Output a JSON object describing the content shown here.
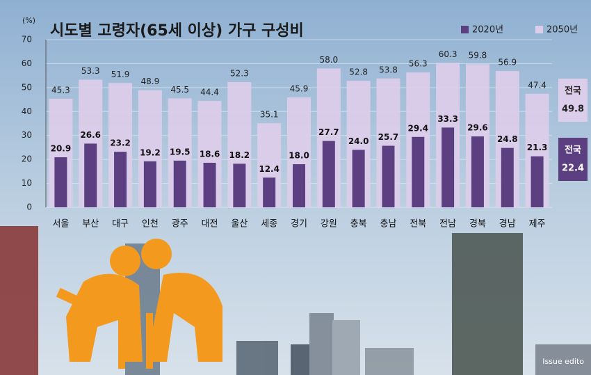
{
  "chart_data": {
    "type": "bar",
    "title": "시도별 고령자(65세 이상) 가구 구성비",
    "y_label": "(%)",
    "categories": [
      "서울",
      "부산",
      "대구",
      "인천",
      "광주",
      "대전",
      "울산",
      "세종",
      "경기",
      "강원",
      "충북",
      "충남",
      "전북",
      "전남",
      "경북",
      "경남",
      "제주"
    ],
    "series": [
      {
        "name": "2020년",
        "color": "#5b3f80",
        "values": [
          20.9,
          26.6,
          23.2,
          19.2,
          19.5,
          18.6,
          18.2,
          12.4,
          18.0,
          27.7,
          24.0,
          25.7,
          29.4,
          33.3,
          29.6,
          24.8,
          21.3
        ],
        "value_labels": [
          "20.9",
          "26.6",
          "23.2",
          "19.2",
          "19.5",
          "18.6",
          "18.2",
          "12.4",
          "18.0",
          "27.7",
          "24.0",
          "25.7",
          "29.4",
          "33.3",
          "29.6",
          "24.8",
          "21.3"
        ]
      },
      {
        "name": "2050년",
        "color": "#dccdea",
        "values": [
          45.3,
          53.3,
          51.9,
          48.9,
          45.5,
          44.4,
          52.3,
          35.1,
          45.9,
          58.0,
          52.8,
          53.8,
          56.3,
          60.3,
          59.8,
          56.9,
          47.4
        ],
        "value_labels": [
          "45.3",
          "53.3",
          "51.9",
          "48.9",
          "45.5",
          "44.4",
          "52.3",
          "35.1",
          "45.9",
          "58.0",
          "52.8",
          "53.8",
          "56.3",
          "60.3",
          "59.8",
          "56.9",
          "47.4"
        ]
      }
    ],
    "ylim": [
      0,
      70
    ],
    "yticks": [
      0,
      10,
      20,
      30,
      40,
      50,
      60,
      70
    ],
    "grid": true,
    "annotations": [
      {
        "label": "전국",
        "value": 49.8,
        "series": 1
      },
      {
        "label": "전국",
        "value": 22.4,
        "series": 0
      }
    ],
    "watermark": "Issue edito"
  }
}
